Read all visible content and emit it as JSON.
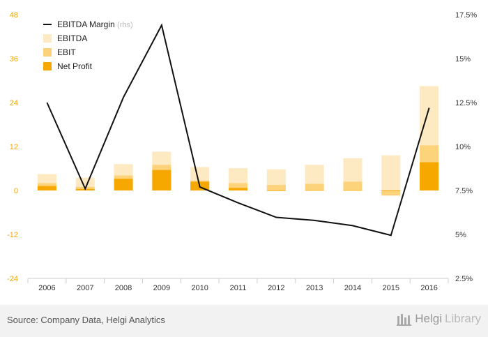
{
  "chart_data": {
    "type": "bar",
    "categories": [
      "2006",
      "2007",
      "2008",
      "2009",
      "2010",
      "2011",
      "2012",
      "2013",
      "2014",
      "2015",
      "2016"
    ],
    "series": [
      {
        "name": "EBITDA",
        "kind": "bar",
        "axis": "left",
        "color": "#fde9c2",
        "values": [
          4.5,
          3.5,
          7.2,
          10.6,
          6.4,
          6.1,
          5.8,
          7.0,
          8.8,
          9.6,
          28.5
        ]
      },
      {
        "name": "EBIT",
        "kind": "bar",
        "axis": "left",
        "color": "#fcd27a",
        "values": [
          2.0,
          1.0,
          4.1,
          7.0,
          2.7,
          2.0,
          1.5,
          1.8,
          2.4,
          -1.4,
          12.3
        ]
      },
      {
        "name": "Net Profit",
        "kind": "bar",
        "axis": "left",
        "color": "#f7a800",
        "values": [
          1.2,
          0.4,
          3.2,
          5.6,
          2.4,
          0.7,
          -0.1,
          0.1,
          0.1,
          -0.2,
          7.7
        ]
      },
      {
        "name": "EBITDA Margin",
        "kind": "line",
        "axis": "right",
        "color": "#111111",
        "values": [
          12.5,
          7.6,
          12.8,
          16.9,
          7.7,
          6.8,
          5.97,
          5.8,
          5.5,
          4.95,
          12.2
        ]
      }
    ],
    "legend": {
      "position": "top-left",
      "rhs_note": "(rhs)"
    },
    "y_left": {
      "min": -24,
      "max": 48,
      "ticks": [
        "48",
        "36",
        "24",
        "12",
        "0",
        "-12",
        "-24"
      ],
      "tick_values": [
        48,
        36,
        24,
        12,
        0,
        -12,
        -24
      ]
    },
    "y_right": {
      "min": 2.5,
      "max": 17.5,
      "ticks": [
        "17.5%",
        "15%",
        "12.5%",
        "10%",
        "7.5%",
        "5%",
        "2.5%"
      ],
      "tick_values": [
        17.5,
        15,
        12.5,
        10,
        7.5,
        5,
        2.5
      ]
    },
    "grid": false
  },
  "footer": {
    "source": "Source: Company Data, Helgi Analytics",
    "brand_a": "Helgi",
    "brand_b": "Library"
  },
  "colors": {
    "left_axis_text": "#f0a500",
    "right_axis_text": "#333333",
    "axis_line": "#cccccc"
  }
}
